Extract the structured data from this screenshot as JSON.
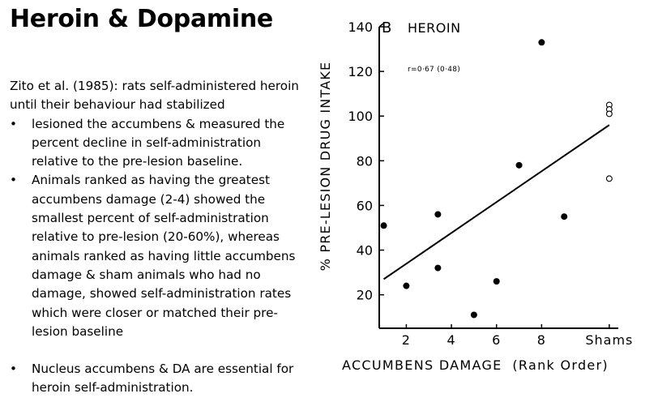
{
  "slide": {
    "title": "Heroin & Dopamine",
    "intro": "Zito et al. (1985): rats self-administered heroin until their behaviour had stabilized",
    "bullets": [
      "lesioned the accumbens & measured the percent decline in self-administration relative to the pre-lesion baseline.",
      "Animals ranked as having the greatest accumbens damage (2-4) showed the smallest percent of self-administration relative to pre-lesion (20-60%), whereas animals ranked as having little accumbens damage & sham animals who had no damage, showed self-administration rates which were closer or matched their pre-lesion baseline",
      "Nucleus accumbens & DA are essential for heroin self-administration."
    ]
  },
  "chart_data": {
    "type": "scatter",
    "panel_label": "B",
    "title": "HEROIN",
    "annotation": "r=0·67  (0·48)",
    "xlabel": "ACCUMBENS DAMAGE  (Rank Order)",
    "ylabel": "% PRE-LESION DRUG INTAKE",
    "xlim": [
      0.8,
      11.4
    ],
    "ylim": [
      5,
      140
    ],
    "yticks": [
      20,
      40,
      60,
      80,
      100,
      120,
      140
    ],
    "xticks": [
      {
        "value": 2,
        "label": "2"
      },
      {
        "value": 4,
        "label": "4"
      },
      {
        "value": 6,
        "label": "6"
      },
      {
        "value": 8,
        "label": "8"
      },
      {
        "value": 11,
        "label": "Shams"
      }
    ],
    "series": [
      {
        "marker": "filled",
        "x": [
          1,
          2,
          3.4,
          3.4,
          5,
          6,
          7,
          8,
          9
        ],
        "y": [
          51,
          24,
          56,
          32,
          11,
          26,
          78,
          133,
          55
        ]
      },
      {
        "marker": "open",
        "x": [
          11,
          11,
          11,
          11
        ],
        "y": [
          105,
          103,
          101,
          72
        ]
      }
    ],
    "trendline": {
      "x": [
        1,
        11
      ],
      "y": [
        27,
        96
      ]
    },
    "grid": false,
    "legend": "none"
  }
}
